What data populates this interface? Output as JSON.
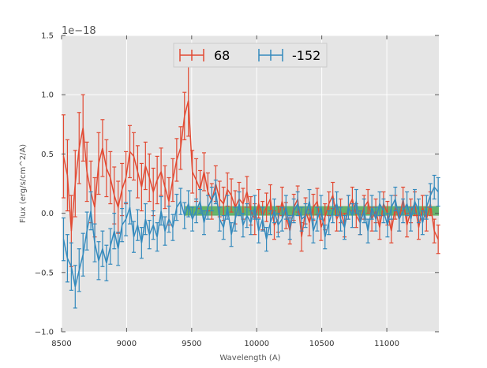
{
  "chart_data": {
    "type": "line",
    "title": "",
    "xlabel": "Wavelength (A)",
    "ylabel": "Flux (erg/s/cm^2/A)",
    "offset_text": "1e−18",
    "xlim": [
      8500,
      11400
    ],
    "ylim": [
      -1.0,
      1.5
    ],
    "xticks": [
      8500,
      9000,
      9500,
      10000,
      10500,
      11000
    ],
    "yticks": [
      -1.0,
      -0.5,
      0.0,
      0.5,
      1.0,
      1.5
    ],
    "xtick_labels": [
      "8500",
      "9000",
      "9500",
      "10000",
      "10500",
      "11000"
    ],
    "ytick_labels": [
      "−1.0",
      "−0.5",
      "0.0",
      "0.5",
      "1.0",
      "1.5"
    ],
    "legend_position": "top-center",
    "band": {
      "x": [
        9450,
        11400
      ],
      "y": [
        -0.02,
        0.06
      ],
      "color": "#3aa040"
    },
    "series": [
      {
        "name": "68",
        "color": "#e24a33",
        "x": [
          8515,
          8545,
          8575,
          8605,
          8635,
          8665,
          8695,
          8725,
          8755,
          8785,
          8815,
          8845,
          8875,
          8905,
          8935,
          8965,
          8995,
          9025,
          9055,
          9085,
          9115,
          9145,
          9175,
          9205,
          9235,
          9265,
          9295,
          9325,
          9355,
          9385,
          9415,
          9445,
          9475,
          9505,
          9535,
          9565,
          9595,
          9625,
          9655,
          9685,
          9715,
          9745,
          9775,
          9805,
          9835,
          9865,
          9895,
          9925,
          9955,
          9985,
          10015,
          10045,
          10075,
          10105,
          10135,
          10165,
          10195,
          10225,
          10255,
          10285,
          10315,
          10345,
          10375,
          10405,
          10435,
          10465,
          10495,
          10525,
          10555,
          10585,
          10615,
          10645,
          10675,
          10705,
          10735,
          10765,
          10795,
          10825,
          10855,
          10885,
          10915,
          10945,
          10975,
          11005,
          11035,
          11065,
          11095,
          11125,
          11155,
          11185,
          11215,
          11245,
          11275,
          11305,
          11335,
          11365,
          11395
        ],
        "y": [
          0.48,
          0.32,
          -0.15,
          0.25,
          0.55,
          0.72,
          0.35,
          0.18,
          0.05,
          0.42,
          0.55,
          0.38,
          0.3,
          0.15,
          0.05,
          0.2,
          0.3,
          0.52,
          0.48,
          0.35,
          0.22,
          0.4,
          0.3,
          0.18,
          0.28,
          0.35,
          0.22,
          0.1,
          0.28,
          0.45,
          0.55,
          0.82,
          0.95,
          0.35,
          0.28,
          0.2,
          0.35,
          0.18,
          0.1,
          0.25,
          0.12,
          0.08,
          0.2,
          0.15,
          0.05,
          0.12,
          0.08,
          0.18,
          0.02,
          -0.05,
          0.08,
          -0.02,
          0.05,
          0.12,
          -0.1,
          -0.05,
          0.1,
          -0.02,
          -0.15,
          0.05,
          0.12,
          -0.2,
          0.02,
          -0.08,
          0.05,
          0.1,
          -0.12,
          -0.03,
          0.08,
          0.15,
          -0.05,
          0.02,
          -0.1,
          0.05,
          0.12,
          -0.02,
          -0.08,
          0.05,
          0.1,
          -0.05,
          0.02,
          -0.12,
          0.08,
          0.0,
          -0.15,
          0.05,
          -0.05,
          0.12,
          -0.1,
          0.02,
          0.08,
          -0.12,
          0.05,
          -0.05,
          0.08,
          -0.15,
          -0.22
        ],
        "err": [
          0.35,
          0.3,
          0.3,
          0.28,
          0.3,
          0.28,
          0.25,
          0.26,
          0.25,
          0.26,
          0.24,
          0.24,
          0.22,
          0.24,
          0.22,
          0.22,
          0.22,
          0.22,
          0.2,
          0.22,
          0.2,
          0.2,
          0.2,
          0.2,
          0.2,
          0.2,
          0.18,
          0.2,
          0.18,
          0.18,
          0.18,
          0.2,
          0.3,
          0.18,
          0.18,
          0.16,
          0.16,
          0.16,
          0.15,
          0.15,
          0.15,
          0.14,
          0.14,
          0.14,
          0.14,
          0.14,
          0.13,
          0.13,
          0.12,
          0.13,
          0.12,
          0.12,
          0.12,
          0.12,
          0.12,
          0.11,
          0.12,
          0.11,
          0.11,
          0.11,
          0.11,
          0.12,
          0.11,
          0.11,
          0.11,
          0.11,
          0.11,
          0.11,
          0.1,
          0.11,
          0.1,
          0.1,
          0.1,
          0.1,
          0.1,
          0.1,
          0.1,
          0.1,
          0.1,
          0.1,
          0.1,
          0.1,
          0.1,
          0.1,
          0.1,
          0.1,
          0.1,
          0.1,
          0.1,
          0.1,
          0.1,
          0.1,
          0.1,
          0.1,
          0.1,
          0.1,
          0.12
        ]
      },
      {
        "name": "-152",
        "color": "#348abd",
        "x": [
          8515,
          8545,
          8575,
          8605,
          8635,
          8665,
          8695,
          8725,
          8755,
          8785,
          8815,
          8845,
          8875,
          8905,
          8935,
          8965,
          8995,
          9025,
          9055,
          9085,
          9115,
          9145,
          9175,
          9205,
          9235,
          9265,
          9295,
          9325,
          9355,
          9385,
          9415,
          9445,
          9475,
          9505,
          9535,
          9565,
          9595,
          9625,
          9655,
          9685,
          9715,
          9745,
          9775,
          9805,
          9835,
          9865,
          9895,
          9925,
          9955,
          9985,
          10015,
          10045,
          10075,
          10105,
          10135,
          10165,
          10195,
          10225,
          10255,
          10285,
          10315,
          10345,
          10375,
          10405,
          10435,
          10465,
          10495,
          10525,
          10555,
          10585,
          10615,
          10645,
          10675,
          10705,
          10735,
          10765,
          10795,
          10825,
          10855,
          10885,
          10915,
          10945,
          10975,
          11005,
          11035,
          11065,
          11095,
          11125,
          11155,
          11185,
          11215,
          11245,
          11275,
          11305,
          11335,
          11365,
          11395
        ],
        "y": [
          -0.22,
          -0.38,
          -0.45,
          -0.62,
          -0.48,
          -0.35,
          -0.15,
          0.02,
          -0.25,
          -0.4,
          -0.3,
          -0.42,
          -0.28,
          -0.15,
          -0.3,
          -0.1,
          -0.05,
          0.05,
          -0.2,
          -0.1,
          -0.25,
          -0.05,
          -0.18,
          -0.1,
          -0.2,
          0.02,
          -0.15,
          -0.05,
          -0.12,
          0.05,
          0.1,
          -0.02,
          0.08,
          -0.05,
          0.02,
          0.1,
          -0.08,
          0.05,
          0.12,
          0.18,
          -0.05,
          -0.12,
          0.05,
          -0.18,
          -0.05,
          0.08,
          -0.1,
          -0.02,
          -0.08,
          0.05,
          -0.15,
          -0.05,
          -0.22,
          -0.08,
          0.02,
          -0.1,
          -0.05,
          0.05,
          -0.12,
          0.02,
          0.08,
          -0.05,
          -0.02,
          0.1,
          -0.15,
          -0.05,
          0.05,
          -0.2,
          -0.08,
          0.02,
          0.08,
          -0.05,
          -0.12,
          0.05,
          -0.02,
          0.1,
          -0.08,
          0.02,
          -0.15,
          0.05,
          -0.05,
          0.08,
          0.02,
          -0.1,
          0.05,
          0.12,
          -0.05,
          0.02,
          0.08,
          -0.05,
          0.1,
          0.02,
          -0.08,
          0.05,
          0.15,
          0.22,
          0.18
        ],
        "err": [
          0.18,
          0.2,
          0.2,
          0.18,
          0.18,
          0.18,
          0.16,
          0.16,
          0.16,
          0.16,
          0.15,
          0.15,
          0.15,
          0.15,
          0.14,
          0.14,
          0.14,
          0.14,
          0.13,
          0.13,
          0.13,
          0.13,
          0.12,
          0.12,
          0.12,
          0.12,
          0.12,
          0.11,
          0.11,
          0.11,
          0.11,
          0.11,
          0.11,
          0.1,
          0.1,
          0.1,
          0.1,
          0.1,
          0.1,
          0.1,
          0.1,
          0.1,
          0.1,
          0.1,
          0.1,
          0.1,
          0.1,
          0.1,
          0.1,
          0.1,
          0.1,
          0.1,
          0.1,
          0.1,
          0.1,
          0.1,
          0.1,
          0.1,
          0.1,
          0.1,
          0.1,
          0.1,
          0.1,
          0.1,
          0.1,
          0.1,
          0.1,
          0.1,
          0.1,
          0.1,
          0.1,
          0.1,
          0.1,
          0.1,
          0.1,
          0.1,
          0.1,
          0.1,
          0.1,
          0.1,
          0.1,
          0.1,
          0.1,
          0.1,
          0.1,
          0.1,
          0.1,
          0.1,
          0.1,
          0.1,
          0.1,
          0.1,
          0.1,
          0.1,
          0.1,
          0.1,
          0.12
        ]
      }
    ]
  }
}
